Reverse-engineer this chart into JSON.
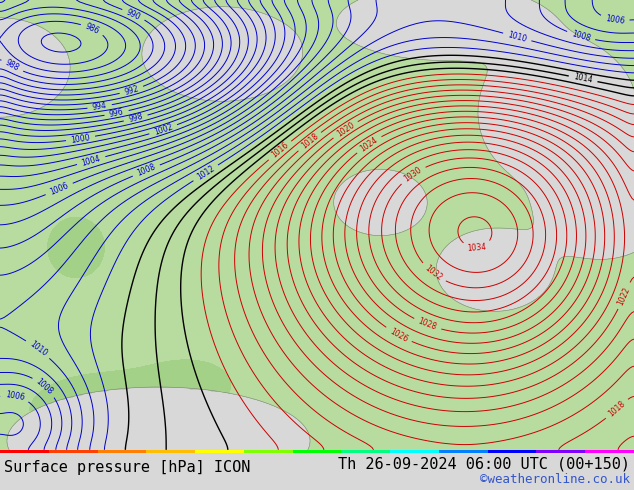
{
  "title_left": "Surface pressure [hPa] ICON",
  "title_right": "Th 26-09-2024 06:00 UTC (00+150)",
  "copyright": "©weatheronline.co.uk",
  "bg_color": "#d8d8d8",
  "land_color": "#b8dba0",
  "sea_color": "#c8e0f0",
  "isobar_color_blue": "#0000cc",
  "isobar_color_red": "#cc0000",
  "isobar_color_black": "#000000",
  "footer_fontsize": 11,
  "copyright_color": "#3355cc",
  "footer_bg": "#d8d8d8",
  "rainbow_colors": [
    "#ff0000",
    "#ff4000",
    "#ff8000",
    "#ffbf00",
    "#ffff00",
    "#80ff00",
    "#00ff00",
    "#00ff80",
    "#00ffff",
    "#0080ff",
    "#0000ff",
    "#8000ff",
    "#ff00ff"
  ]
}
